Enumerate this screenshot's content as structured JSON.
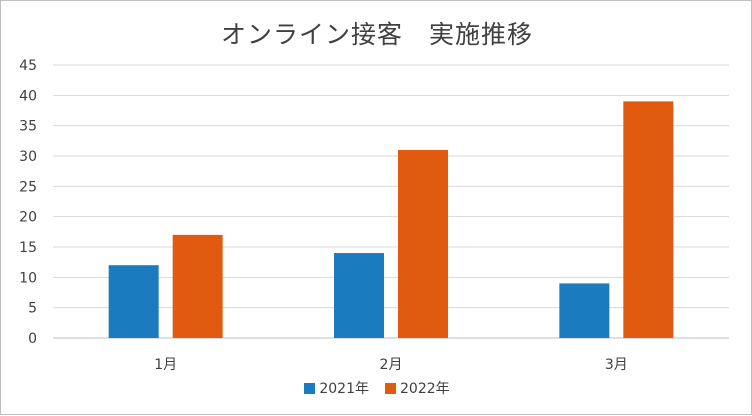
{
  "chart_data": {
    "type": "bar",
    "title": "オンライン接客　実施推移",
    "categories": [
      "1月",
      "2月",
      "3月"
    ],
    "series": [
      {
        "name": "2021年",
        "values": [
          12,
          14,
          9
        ],
        "color": "#1a7cbf"
      },
      {
        "name": "2022年",
        "values": [
          17,
          31,
          39
        ],
        "color": "#e05a10"
      }
    ],
    "ylim": [
      0,
      45
    ],
    "yticks": [
      "0",
      "5",
      "10",
      "15",
      "20",
      "25",
      "30",
      "35",
      "40",
      "45"
    ],
    "grid": true,
    "legend_position": "bottom"
  }
}
